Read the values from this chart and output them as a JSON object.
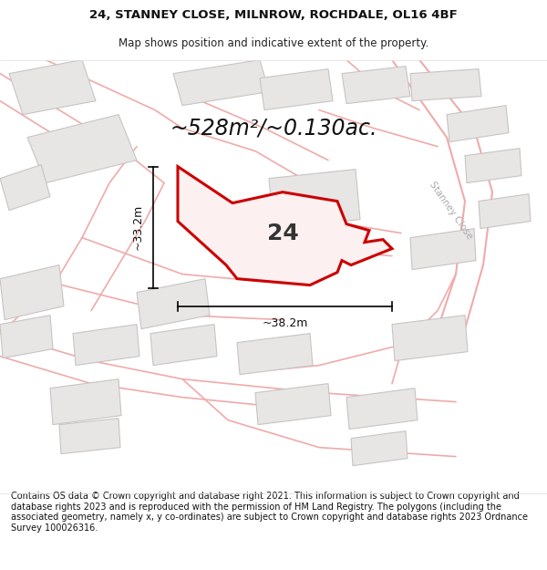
{
  "title_line1": "24, STANNEY CLOSE, MILNROW, ROCHDALE, OL16 4BF",
  "title_line2": "Map shows position and indicative extent of the property.",
  "area_text": "~528m²/~0.130ac.",
  "number_label": "24",
  "dim_width": "~38.2m",
  "dim_height": "~33.2m",
  "street_label": "Stanney Close",
  "footer_text": "Contains OS data © Crown copyright and database right 2021. This information is subject to Crown copyright and database rights 2023 and is reproduced with the permission of HM Land Registry. The polygons (including the associated geometry, namely x, y co-ordinates) are subject to Crown copyright and database rights 2023 Ordnance Survey 100026316.",
  "bg_color": "#ffffff",
  "map_bg": "#f9f7f7",
  "polygon_fill": "#fdf0f0",
  "polygon_edge": "#cc0000",
  "road_color": "#f0aaaa",
  "building_fill": "#e8e5e5",
  "building_edge": "#c8c4c4",
  "title_fontsize": 9.5,
  "subtitle_fontsize": 8.5,
  "area_fontsize": 17,
  "number_fontsize": 18,
  "footer_fontsize": 7.0
}
